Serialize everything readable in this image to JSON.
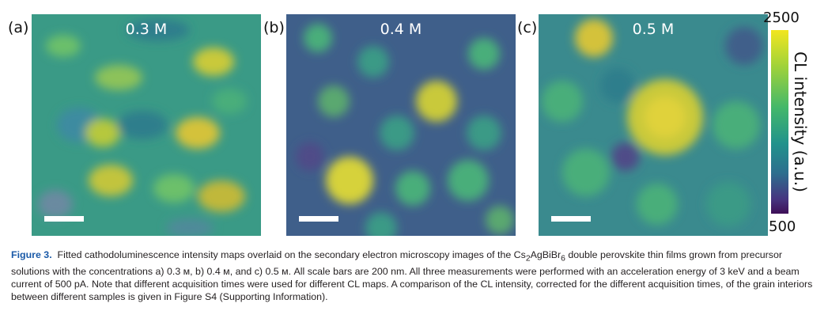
{
  "panels": [
    {
      "label": "(a)",
      "concentration": "0.3 M"
    },
    {
      "label": "(b)",
      "concentration": "0.4 M"
    },
    {
      "label": "(c)",
      "concentration": "0.5 M"
    }
  ],
  "colorbar": {
    "max_label": "2500",
    "min_label": "500",
    "title": "CL intensity (a.u.)",
    "colors": [
      "#f2e61f",
      "#9fd23a",
      "#44b86a",
      "#21928c",
      "#2d6e8e",
      "#463580",
      "#3e0f57"
    ]
  },
  "caption": {
    "figure_label": "Figure 3.",
    "text_1": "Fitted cathodoluminescence intensity maps overlaid on the secondary electron microscopy images of the Cs",
    "sub_1": "2",
    "text_2": "AgBiBr",
    "sub_2": "6",
    "text_3": " double perovskite thin films grown from precursor solutions with the concentrations a) 0.3 м, b) 0.4 м, and c) 0.5 м. All scale bars are 200 nm. All three measurements were performed with an acceleration energy of 3 keV and a beam current of 500 pA. Note that different acquisition times were used for different CL maps. A comparison of the CL intensity, corrected for the different acquisition times, of the grain interiors between different samples is given in Figure S4 (Supporting Information)."
  }
}
